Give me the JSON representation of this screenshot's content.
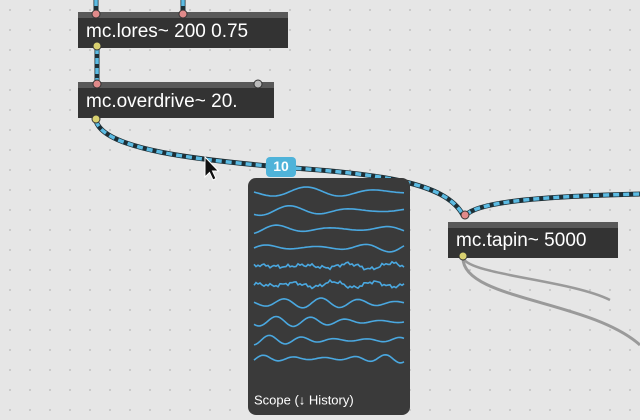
{
  "objects": [
    {
      "text": "mc.lores~ 200 0.75"
    },
    {
      "text": "mc.overdrive~ 20."
    },
    {
      "text": "mc.tapin~ 5000"
    }
  ],
  "cord_badge": "10",
  "scope": {
    "label": "Scope (↓ History)"
  }
}
